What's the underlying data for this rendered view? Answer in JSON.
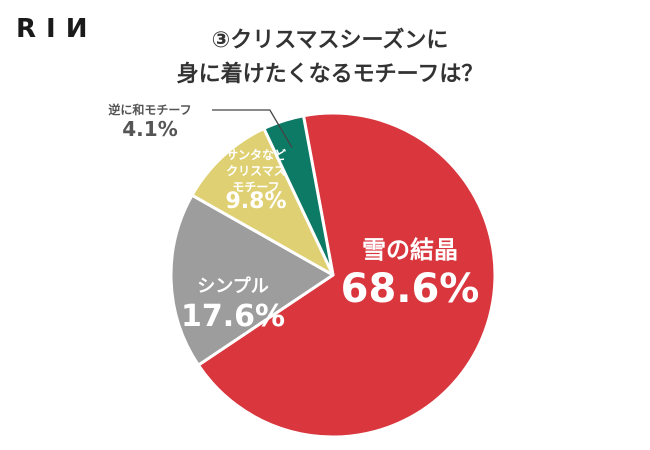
{
  "brand": {
    "logo_text": "RIИ"
  },
  "chart_data": {
    "type": "pie",
    "title_line1": "③クリスマスシーズンに",
    "title_line2": "身に着けたくなるモチーフは？",
    "start_angle_deg": -10.5,
    "direction": "clockwise",
    "slices": [
      {
        "label": [
          "雪の結晶"
        ],
        "value": 68.6,
        "value_text": "68.6%",
        "color": "#d9363e",
        "label_color": "#ffffff"
      },
      {
        "label": [
          "シンプル"
        ],
        "value": 17.6,
        "value_text": "17.6%",
        "color": "#9d9d9d",
        "label_color": "#ffffff"
      },
      {
        "label": [
          "サンタなど",
          "クリスマス",
          "モチーフ"
        ],
        "value": 9.8,
        "value_text": "9.8%",
        "color": "#dfd073",
        "label_color": "#ffffff"
      },
      {
        "label": [
          "逆に和モチーフ"
        ],
        "value": 4.1,
        "value_text": "4.1%",
        "color": "#0d7a66",
        "label_color": "#555555",
        "outside": true
      }
    ]
  }
}
